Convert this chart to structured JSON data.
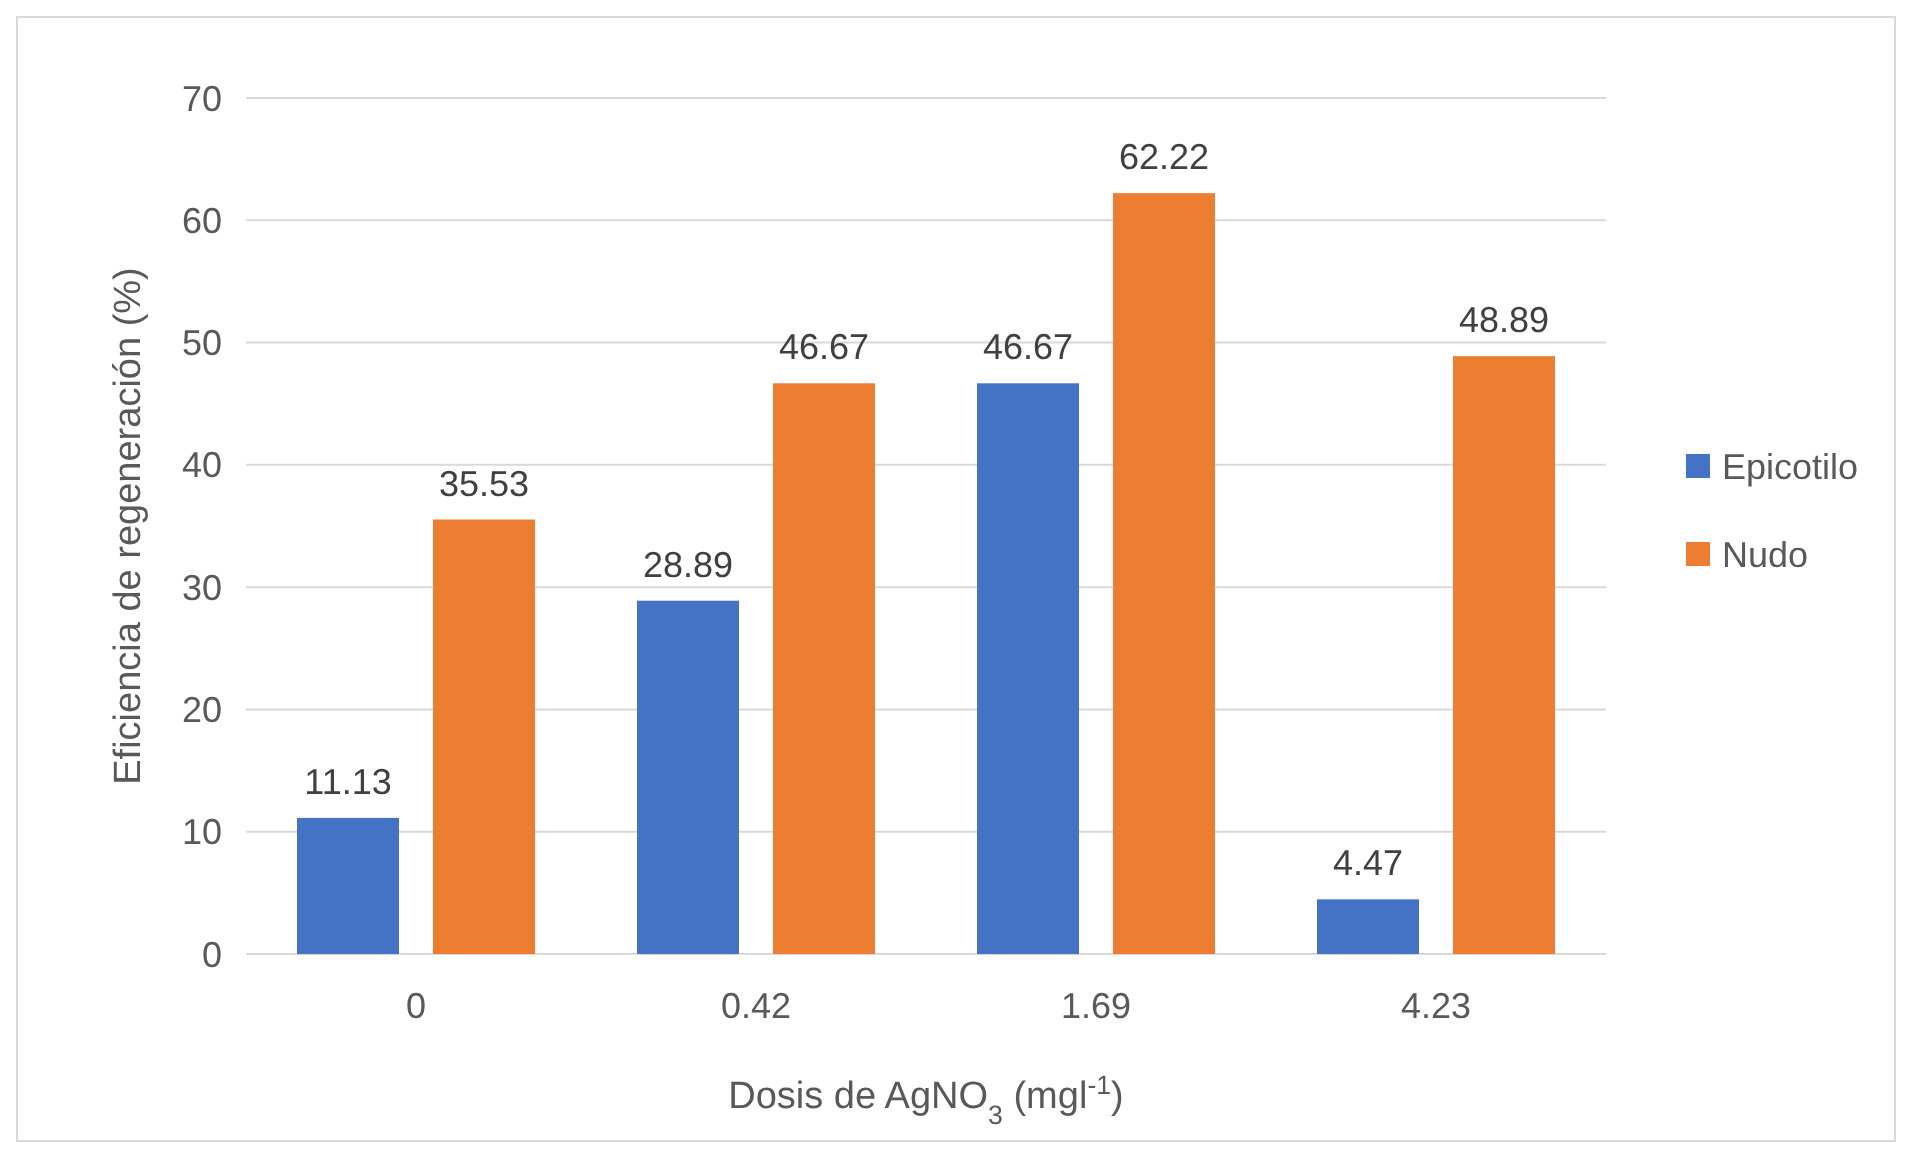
{
  "chart_data": {
    "type": "bar",
    "xlabel": "Dosis de AgNO$_{3}$ (mgl$^{-1}$)",
    "ylabel": "Eficiencia de regeneración (%)",
    "categories": [
      "0",
      "0.42",
      "1.69",
      "4.23"
    ],
    "series": [
      {
        "name": "Epicotilo",
        "color": "#4472c4",
        "values": [
          11.13,
          28.89,
          46.67,
          4.47
        ]
      },
      {
        "name": "Nudo",
        "color": "#ed7d31",
        "values": [
          35.53,
          46.67,
          62.22,
          48.89
        ]
      }
    ],
    "ylim": [
      0,
      70
    ],
    "yticks": [
      0,
      10,
      20,
      30,
      40,
      50,
      60,
      70
    ],
    "grid": "y",
    "legend": "right",
    "data_labels": true
  }
}
